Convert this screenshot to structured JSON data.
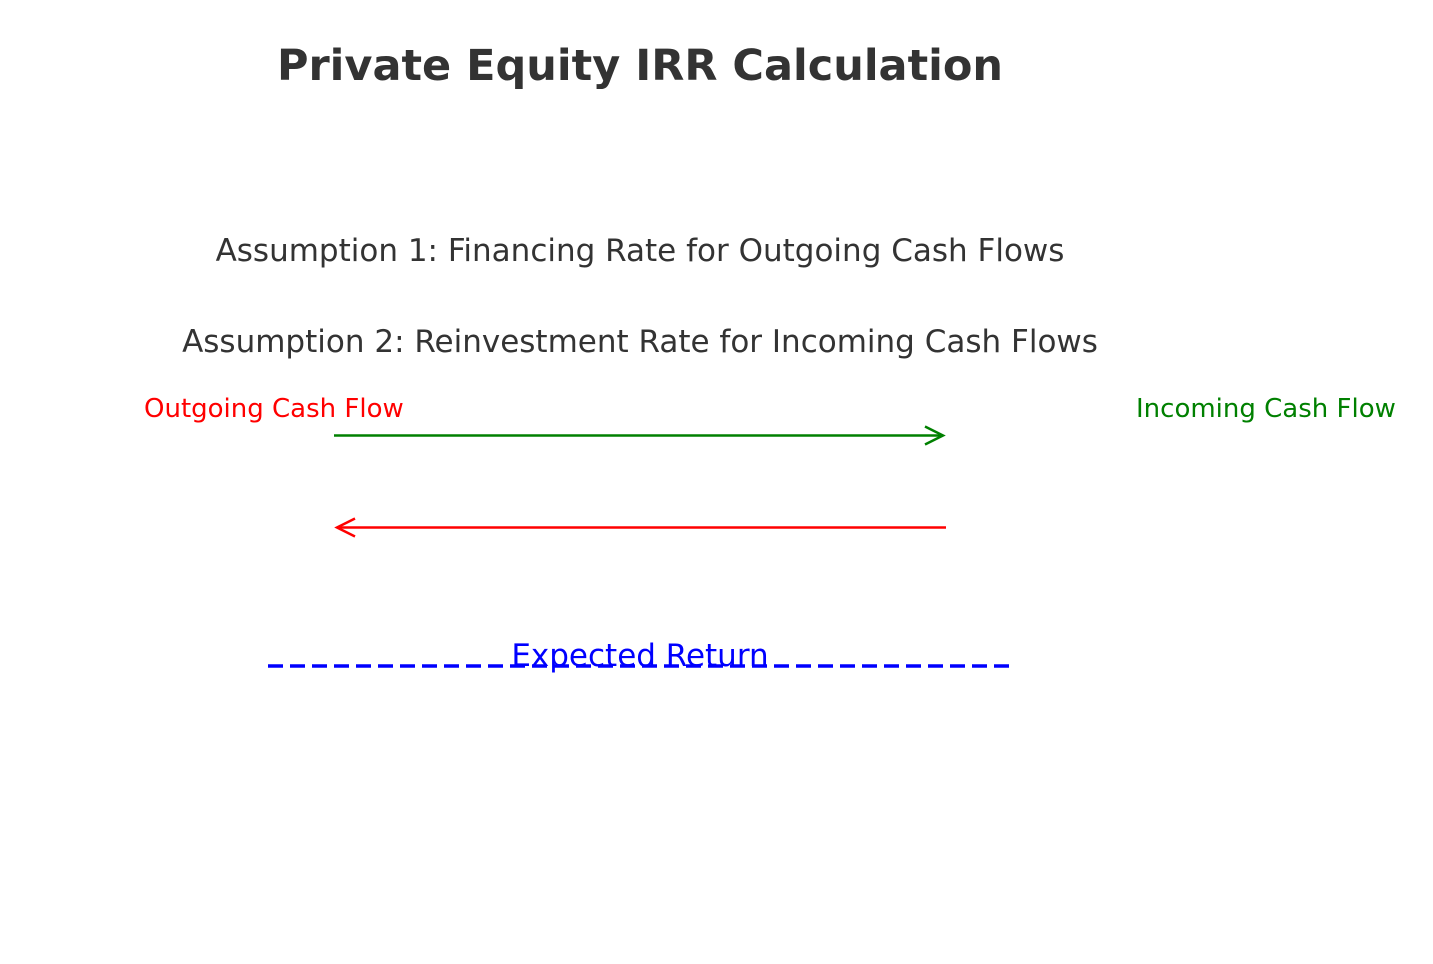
{
  "title": "Private Equity IRR Calculation",
  "assumptions": {
    "first": "Assumption 1: Financing Rate for Outgoing Cash Flows",
    "second": "Assumption 2: Reinvestment Rate for Incoming Cash Flows"
  },
  "flows": {
    "outgoing_label": "Outgoing Cash Flow",
    "incoming_label": "Incoming Cash Flow"
  },
  "expected_return_label": "Expected Return",
  "colors": {
    "title_text": "#333333",
    "outgoing": "#ff0000",
    "incoming": "#008000",
    "expected_return": "#0000ff"
  }
}
